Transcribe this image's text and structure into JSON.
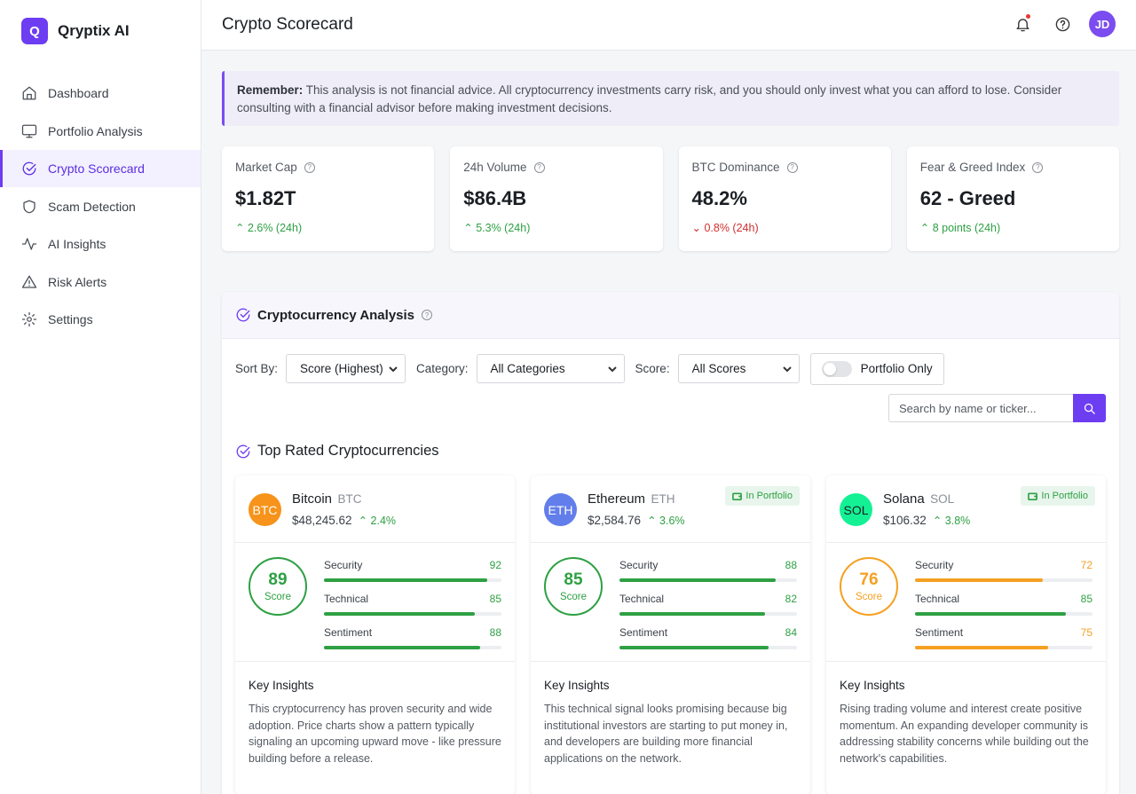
{
  "brand": {
    "logo_letter": "Q",
    "name": "Qryptix AI"
  },
  "nav": [
    {
      "label": "Dashboard",
      "icon": "home-icon"
    },
    {
      "label": "Portfolio Analysis",
      "icon": "monitor-icon"
    },
    {
      "label": "Crypto Scorecard",
      "icon": "check-circle-icon",
      "active": true
    },
    {
      "label": "Scam Detection",
      "icon": "shield-icon"
    },
    {
      "label": "AI Insights",
      "icon": "activity-icon"
    },
    {
      "label": "Risk Alerts",
      "icon": "alert-triangle-icon"
    },
    {
      "label": "Settings",
      "icon": "gear-icon"
    }
  ],
  "header": {
    "title": "Crypto Scorecard",
    "avatar_initials": "JD"
  },
  "notice": {
    "strong": "Remember:",
    "text": " This analysis is not financial advice. All cryptocurrency investments carry risk, and you should only invest what you can afford to lose. Consider consulting with a financial advisor before making investment decisions."
  },
  "stats": [
    {
      "label": "Market Cap",
      "value": "$1.82T",
      "change": "2.6% (24h)",
      "direction": "up"
    },
    {
      "label": "24h Volume",
      "value": "$86.4B",
      "change": "5.3% (24h)",
      "direction": "up"
    },
    {
      "label": "BTC Dominance",
      "value": "48.2%",
      "change": "0.8% (24h)",
      "direction": "down"
    },
    {
      "label": "Fear & Greed Index",
      "value": "62 - Greed",
      "change": "8 points (24h)",
      "direction": "up"
    }
  ],
  "analysis": {
    "title": "Cryptocurrency Analysis",
    "filters": {
      "sort_label": "Sort By:",
      "sort_value": "Score (Highest)",
      "category_label": "Category:",
      "category_value": "All Categories",
      "score_label": "Score:",
      "score_value": "All Scores",
      "portfolio_toggle": "Portfolio Only"
    },
    "search_placeholder": "Search by name or ticker...",
    "top_title": "Top Rated Cryptocurrencies",
    "score_word": "Score",
    "insights_title": "Key Insights",
    "badge_label": "In Portfolio",
    "coins": [
      {
        "name": "Bitcoin",
        "ticker": "BTC",
        "price": "$48,245.62",
        "change": "2.4%",
        "logo_color": "#f7931a",
        "in_portfolio": false,
        "score": 89,
        "score_color": "#2ea043",
        "metrics": [
          {
            "label": "Security",
            "value": 92,
            "color": "#2ea043"
          },
          {
            "label": "Technical",
            "value": 85,
            "color": "#2ea043"
          },
          {
            "label": "Sentiment",
            "value": 88,
            "color": "#2ea043"
          }
        ],
        "insight": "This cryptocurrency has proven security and wide adoption. Price charts show a pattern typically signaling an upcoming upward move - like pressure building before a release."
      },
      {
        "name": "Ethereum",
        "ticker": "ETH",
        "price": "$2,584.76",
        "change": "3.6%",
        "logo_color": "#627eea",
        "in_portfolio": true,
        "score": 85,
        "score_color": "#2ea043",
        "metrics": [
          {
            "label": "Security",
            "value": 88,
            "color": "#2ea043"
          },
          {
            "label": "Technical",
            "value": 82,
            "color": "#2ea043"
          },
          {
            "label": "Sentiment",
            "value": 84,
            "color": "#2ea043"
          }
        ],
        "insight": "This technical signal looks promising because big institutional investors are starting to put money in, and developers are building more financial applications on the network."
      },
      {
        "name": "Solana",
        "ticker": "SOL",
        "price": "$106.32",
        "change": "3.8%",
        "logo_color": "#14f195",
        "logo_text_color": "#1b1f24",
        "in_portfolio": true,
        "score": 76,
        "score_color": "#f5a021",
        "metrics": [
          {
            "label": "Security",
            "value": 72,
            "color": "#f5a021"
          },
          {
            "label": "Technical",
            "value": 85,
            "color": "#2ea043"
          },
          {
            "label": "Sentiment",
            "value": 75,
            "color": "#f5a021"
          }
        ],
        "insight": "Rising trading volume and interest create positive momentum. An expanding developer community is addressing stability concerns while building out the network's capabilities."
      }
    ]
  }
}
